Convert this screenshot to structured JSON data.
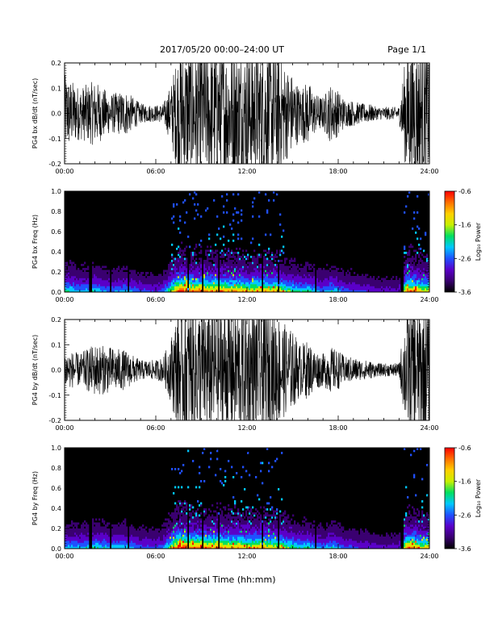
{
  "header": {
    "title": "2017/05/20  00:00–24:00 UT",
    "page": "Page 1/1"
  },
  "colors": {
    "background": "#ffffff",
    "trace": "#000000",
    "spectrogram_background": "#000000",
    "colormap": [
      "#000000",
      "#3a0070",
      "#5a00c8",
      "#2050ff",
      "#00c8ff",
      "#00e060",
      "#c8f000",
      "#ffd000",
      "#ff7000",
      "#ff0000"
    ]
  },
  "chart_data": [
    {
      "type": "line",
      "ylabel": "PG4 bx dB/dt (nT/sec)",
      "xlim_hours": [
        0,
        24
      ],
      "ylim": [
        -0.2,
        0.2
      ],
      "yticks": [
        "-0.2",
        "-0.1",
        "0.0",
        "0.1",
        "0.2"
      ],
      "xticks": [
        "00:00",
        "06:00",
        "12:00",
        "18:00",
        "24:00"
      ],
      "envelope": {
        "hours": [
          0,
          1,
          2,
          3,
          4,
          5,
          6,
          6.5,
          7,
          7.5,
          8,
          8.5,
          9,
          9.5,
          10,
          10.5,
          11,
          11.5,
          12,
          12.5,
          13,
          13.5,
          14,
          14.5,
          15,
          15.5,
          16,
          16.5,
          17,
          17.5,
          18,
          18.5,
          19,
          19.5,
          20,
          20.5,
          21,
          21.5,
          22,
          22.5,
          23,
          23.5,
          24
        ],
        "amplitude": [
          0.12,
          0.08,
          0.1,
          0.06,
          0.07,
          0.03,
          0.025,
          0.03,
          0.09,
          0.2,
          0.2,
          0.2,
          0.2,
          0.2,
          0.2,
          0.2,
          0.2,
          0.2,
          0.2,
          0.2,
          0.2,
          0.2,
          0.2,
          0.15,
          0.12,
          0.08,
          0.1,
          0.06,
          0.05,
          0.09,
          0.07,
          0.04,
          0.04,
          0.03,
          0.03,
          0.02,
          0.02,
          0.02,
          0.02,
          0.2,
          0.2,
          0.2,
          0.2
        ]
      }
    },
    {
      "type": "heatmap",
      "ylabel": "PG4 bx Freq (Hz)",
      "xlim_hours": [
        0,
        24
      ],
      "ylim": [
        0,
        1.0
      ],
      "yticks": [
        "0.0",
        "0.2",
        "0.4",
        "0.6",
        "0.8",
        "1.0"
      ],
      "xticks": [
        "00:00",
        "06:00",
        "12:00",
        "18:00",
        "24:00"
      ],
      "colorbar": {
        "label": "Log₁₀ Power",
        "range": [
          -3.6,
          -0.6
        ],
        "ticks": [
          "-0.6",
          "-1.6",
          "-2.6",
          "-3.6"
        ]
      },
      "activity_hours": [
        0,
        1,
        2,
        3,
        4,
        5,
        6,
        6.5,
        7,
        7.5,
        8,
        8.5,
        9,
        9.5,
        10,
        10.5,
        11,
        11.5,
        12,
        12.5,
        13,
        13.5,
        14,
        14.5,
        15,
        15.5,
        16,
        16.5,
        17,
        17.5,
        18,
        18.5,
        19,
        19.5,
        20,
        20.5,
        21,
        21.5,
        22,
        22.5,
        23,
        23.5,
        24
      ],
      "activity_level": [
        0.55,
        0.4,
        0.45,
        0.35,
        0.4,
        0.3,
        0.25,
        0.3,
        0.6,
        0.95,
        0.9,
        0.85,
        0.9,
        0.8,
        0.85,
        0.8,
        0.75,
        0.8,
        0.7,
        0.75,
        0.8,
        0.7,
        0.75,
        0.6,
        0.55,
        0.45,
        0.5,
        0.4,
        0.35,
        0.45,
        0.4,
        0.3,
        0.3,
        0.25,
        0.25,
        0.2,
        0.2,
        0.2,
        0.2,
        0.85,
        0.8,
        0.7,
        0.7
      ],
      "dropout_hours": [
        1.7,
        3.0,
        4.2,
        8.1,
        9.1,
        10.1,
        13.0,
        14.1,
        16.5,
        22.2
      ]
    },
    {
      "type": "line",
      "ylabel": "PG4 by dB/dt (nT/sec)",
      "xlim_hours": [
        0,
        24
      ],
      "ylim": [
        -0.2,
        0.2
      ],
      "yticks": [
        "-0.2",
        "-0.1",
        "0.0",
        "0.1",
        "0.2"
      ],
      "xticks": [
        "00:00",
        "06:00",
        "12:00",
        "18:00",
        "24:00"
      ],
      "envelope": {
        "hours": [
          0,
          1,
          2,
          3,
          4,
          5,
          6,
          6.5,
          7,
          7.5,
          8,
          8.5,
          9,
          9.5,
          10,
          10.5,
          11,
          11.5,
          12,
          12.5,
          13,
          13.5,
          14,
          14.5,
          15,
          15.5,
          16,
          16.5,
          17,
          17.5,
          18,
          18.5,
          19,
          19.5,
          20,
          20.5,
          21,
          21.5,
          22,
          22.5,
          23,
          23.5,
          24
        ],
        "amplitude": [
          0.06,
          0.05,
          0.08,
          0.07,
          0.06,
          0.03,
          0.03,
          0.04,
          0.1,
          0.2,
          0.2,
          0.2,
          0.2,
          0.2,
          0.2,
          0.2,
          0.2,
          0.2,
          0.2,
          0.2,
          0.2,
          0.2,
          0.18,
          0.14,
          0.12,
          0.08,
          0.09,
          0.06,
          0.05,
          0.07,
          0.06,
          0.04,
          0.04,
          0.03,
          0.03,
          0.02,
          0.02,
          0.02,
          0.02,
          0.2,
          0.2,
          0.2,
          0.2
        ]
      }
    },
    {
      "type": "heatmap",
      "ylabel": "PG4 by Freq (Hz)",
      "xlim_hours": [
        0,
        24
      ],
      "ylim": [
        0,
        1.0
      ],
      "yticks": [
        "0.0",
        "0.2",
        "0.4",
        "0.6",
        "0.8",
        "1.0"
      ],
      "xticks": [
        "00:00",
        "06:00",
        "12:00",
        "18:00",
        "24:00"
      ],
      "colorbar": {
        "label": "Log₁₀ Power",
        "range": [
          -3.6,
          -0.6
        ],
        "ticks": [
          "-0.6",
          "-1.6",
          "-2.6",
          "-3.6"
        ]
      },
      "activity_hours": [
        0,
        1,
        2,
        3,
        4,
        5,
        6,
        6.5,
        7,
        7.5,
        8,
        8.5,
        9,
        9.5,
        10,
        10.5,
        11,
        11.5,
        12,
        12.5,
        13,
        13.5,
        14,
        14.5,
        15,
        15.5,
        16,
        16.5,
        17,
        17.5,
        18,
        18.5,
        19,
        19.5,
        20,
        20.5,
        21,
        21.5,
        22,
        22.5,
        23,
        23.5,
        24
      ],
      "activity_level": [
        0.45,
        0.4,
        0.5,
        0.4,
        0.45,
        0.3,
        0.3,
        0.35,
        0.65,
        0.95,
        0.9,
        0.85,
        0.9,
        0.8,
        0.85,
        0.8,
        0.75,
        0.8,
        0.7,
        0.75,
        0.8,
        0.7,
        0.7,
        0.6,
        0.55,
        0.45,
        0.5,
        0.4,
        0.35,
        0.45,
        0.4,
        0.3,
        0.3,
        0.25,
        0.25,
        0.2,
        0.2,
        0.2,
        0.2,
        0.85,
        0.8,
        0.7,
        0.7
      ],
      "dropout_hours": [
        1.7,
        3.0,
        4.2,
        8.1,
        9.1,
        10.1,
        13.0,
        14.1,
        16.5,
        22.2
      ]
    }
  ],
  "footer": {
    "xlabel": "Universal Time (hh:mm)"
  }
}
